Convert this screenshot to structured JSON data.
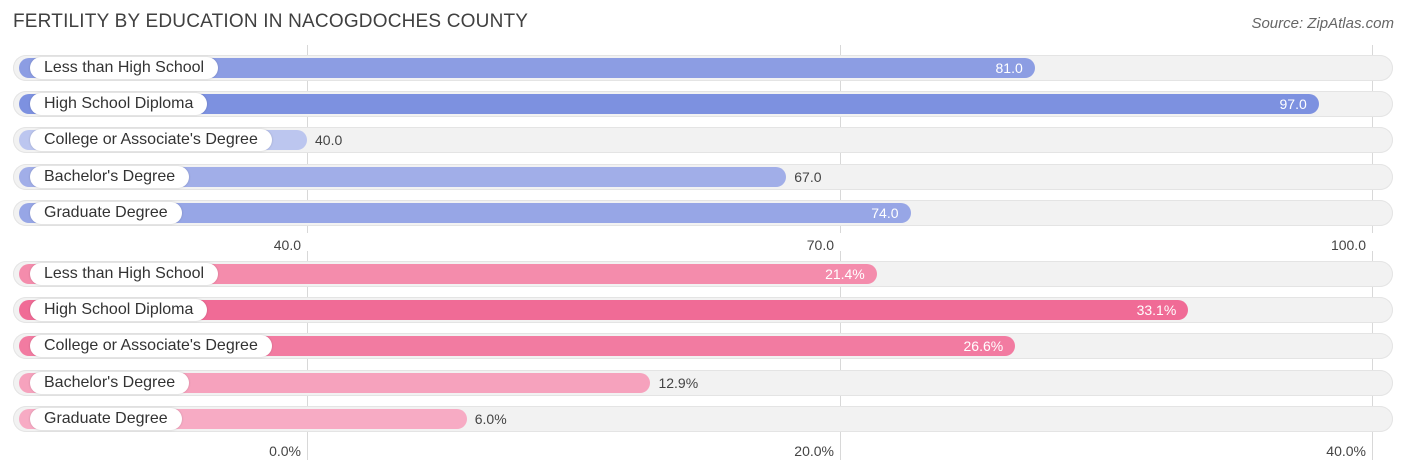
{
  "header": {
    "title": "FERTILITY BY EDUCATION IN NACOGDOCHES COUNTY",
    "source": "Source: ZipAtlas.com"
  },
  "chart_data": [
    {
      "type": "bar",
      "orientation": "horizontal",
      "categories": [
        "Less than High School",
        "High School Diploma",
        "College or Associate's Degree",
        "Bachelor's Degree",
        "Graduate Degree"
      ],
      "values": [
        81.0,
        97.0,
        40.0,
        67.0,
        74.0
      ],
      "value_labels": [
        "81.0",
        "97.0",
        "40.0",
        "67.0",
        "74.0"
      ],
      "xlim": [
        40.0,
        100.0
      ],
      "ticks": [
        40.0,
        70.0,
        100.0
      ],
      "tick_labels": [
        "40.0",
        "70.0",
        "100.0"
      ],
      "colors": [
        "#8c9de3",
        "#7d91e0",
        "#bcc6ef",
        "#a1aee8",
        "#97a6e6"
      ],
      "grid": true
    },
    {
      "type": "bar",
      "orientation": "horizontal",
      "categories": [
        "Less than High School",
        "High School Diploma",
        "College or Associate's Degree",
        "Bachelor's Degree",
        "Graduate Degree"
      ],
      "values": [
        21.4,
        33.1,
        26.6,
        12.9,
        6.0
      ],
      "value_labels": [
        "21.4%",
        "33.1%",
        "26.6%",
        "12.9%",
        "6.0%"
      ],
      "xlim": [
        0.0,
        40.0
      ],
      "ticks": [
        0.0,
        20.0,
        40.0
      ],
      "tick_labels": [
        "0.0%",
        "20.0%",
        "40.0%"
      ],
      "colors": [
        "#f48cac",
        "#f06b96",
        "#f27ba1",
        "#f6a2bd",
        "#f7abc4"
      ],
      "grid": true
    }
  ]
}
